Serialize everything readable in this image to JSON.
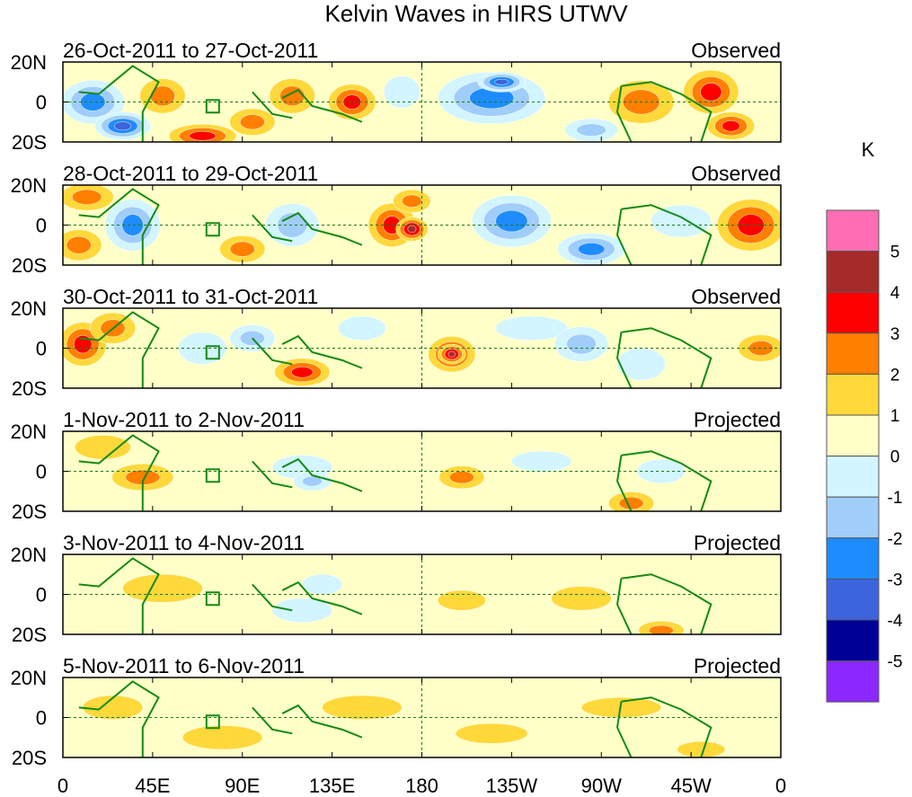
{
  "chart_data": {
    "type": "heatmap",
    "title": "Kelvin Waves in HIRS UTWV",
    "units": "K",
    "x_tick_labels": [
      "0",
      "45E",
      "90E",
      "135E",
      "180",
      "135W",
      "90W",
      "45W",
      "0"
    ],
    "x_range": [
      0,
      360
    ],
    "y_tick_labels": [
      "20N",
      "0",
      "20S"
    ],
    "y_range": [
      -20,
      20
    ],
    "colorbar": {
      "labels": [
        "5",
        "4",
        "3",
        "2",
        "1",
        "0",
        "-1",
        "-2",
        "-3",
        "-4",
        "-5"
      ],
      "colors": [
        "#ff6eb4",
        "#a52a2a",
        "#ff0000",
        "#ff7f00",
        "#ffd83a",
        "#ffffc8",
        "#d2f5ff",
        "#a0cdfa",
        "#1e8cff",
        "#3c64dc",
        "#000096",
        "#8c28ff"
      ]
    },
    "panels": [
      {
        "date_range": "26-Oct-2011 to 27-Oct-2011",
        "kind": "Observed",
        "anomalies": [
          {
            "lon": 15,
            "lat": 0,
            "rx": 14,
            "ry": 10,
            "level": -3
          },
          {
            "lon": 30,
            "lat": -12,
            "rx": 12,
            "ry": 6,
            "level": -4
          },
          {
            "lon": 50,
            "lat": 3,
            "rx": 10,
            "ry": 8,
            "level": 2
          },
          {
            "lon": 70,
            "lat": -17,
            "rx": 15,
            "ry": 5,
            "level": 3
          },
          {
            "lon": 95,
            "lat": -10,
            "rx": 10,
            "ry": 6,
            "level": 2
          },
          {
            "lon": 115,
            "lat": 3,
            "rx": 10,
            "ry": 8,
            "level": 2
          },
          {
            "lon": 145,
            "lat": 0,
            "rx": 10,
            "ry": 8,
            "level": 3
          },
          {
            "lon": 170,
            "lat": 5,
            "rx": 9,
            "ry": 8,
            "level": -1
          },
          {
            "lon": 215,
            "lat": 2,
            "rx": 25,
            "ry": 12,
            "level": -3
          },
          {
            "lon": 220,
            "lat": 10,
            "rx": 10,
            "ry": 4,
            "level": -4
          },
          {
            "lon": 290,
            "lat": 0,
            "rx": 15,
            "ry": 10,
            "level": 2
          },
          {
            "lon": 265,
            "lat": -14,
            "rx": 12,
            "ry": 5,
            "level": -2
          },
          {
            "lon": 325,
            "lat": 5,
            "rx": 12,
            "ry": 10,
            "level": 3
          },
          {
            "lon": 335,
            "lat": -12,
            "rx": 10,
            "ry": 6,
            "level": 3
          }
        ]
      },
      {
        "date_range": "28-Oct-2011 to 29-Oct-2011",
        "kind": "Observed",
        "anomalies": [
          {
            "lon": 12,
            "lat": 14,
            "rx": 12,
            "ry": 6,
            "level": 2
          },
          {
            "lon": 8,
            "lat": -10,
            "rx": 10,
            "ry": 7,
            "level": 2
          },
          {
            "lon": 35,
            "lat": 0,
            "rx": 12,
            "ry": 12,
            "level": -3
          },
          {
            "lon": 90,
            "lat": -12,
            "rx": 10,
            "ry": 6,
            "level": 2
          },
          {
            "lon": 115,
            "lat": 0,
            "rx": 12,
            "ry": 10,
            "level": -2
          },
          {
            "lon": 165,
            "lat": 0,
            "rx": 10,
            "ry": 10,
            "level": 3
          },
          {
            "lon": 175,
            "lat": -2,
            "rx": 6,
            "ry": 5,
            "level": 4
          },
          {
            "lon": 175,
            "lat": 12,
            "rx": 8,
            "ry": 5,
            "level": 2
          },
          {
            "lon": 225,
            "lat": 2,
            "rx": 18,
            "ry": 12,
            "level": -3
          },
          {
            "lon": 265,
            "lat": -12,
            "rx": 15,
            "ry": 7,
            "level": -3
          },
          {
            "lon": 310,
            "lat": 2,
            "rx": 15,
            "ry": 8,
            "level": -1
          },
          {
            "lon": 345,
            "lat": 0,
            "rx": 15,
            "ry": 12,
            "level": 3
          }
        ]
      },
      {
        "date_range": "30-Oct-2011 to 31-Oct-2011",
        "kind": "Observed",
        "anomalies": [
          {
            "lon": 10,
            "lat": 2,
            "rx": 10,
            "ry": 10,
            "level": 3
          },
          {
            "lon": 25,
            "lat": 10,
            "rx": 10,
            "ry": 7,
            "level": 2
          },
          {
            "lon": 70,
            "lat": 0,
            "rx": 12,
            "ry": 8,
            "level": -1
          },
          {
            "lon": 95,
            "lat": 5,
            "rx": 10,
            "ry": 6,
            "level": -2
          },
          {
            "lon": 120,
            "lat": -12,
            "rx": 12,
            "ry": 6,
            "level": 3
          },
          {
            "lon": 150,
            "lat": 10,
            "rx": 12,
            "ry": 6,
            "level": -1
          },
          {
            "lon": 195,
            "lat": -3,
            "rx": 10,
            "ry": 8,
            "level": 3
          },
          {
            "lon": 195,
            "lat": -3,
            "rx": 5,
            "ry": 4,
            "level": 4
          },
          {
            "lon": 235,
            "lat": 10,
            "rx": 18,
            "ry": 6,
            "level": -1
          },
          {
            "lon": 260,
            "lat": 2,
            "rx": 12,
            "ry": 8,
            "level": -2
          },
          {
            "lon": 290,
            "lat": -8,
            "rx": 12,
            "ry": 8,
            "level": -1
          },
          {
            "lon": 350,
            "lat": 0,
            "rx": 10,
            "ry": 6,
            "level": 2
          }
        ]
      },
      {
        "date_range": "1-Nov-2011 to 2-Nov-2011",
        "kind": "Projected",
        "anomalies": [
          {
            "lon": 20,
            "lat": 12,
            "rx": 14,
            "ry": 6,
            "level": 1
          },
          {
            "lon": 40,
            "lat": -3,
            "rx": 14,
            "ry": 6,
            "level": 2
          },
          {
            "lon": 120,
            "lat": 2,
            "rx": 15,
            "ry": 6,
            "level": -1
          },
          {
            "lon": 125,
            "lat": -5,
            "rx": 8,
            "ry": 4,
            "level": -2
          },
          {
            "lon": 200,
            "lat": -3,
            "rx": 10,
            "ry": 5,
            "level": 2
          },
          {
            "lon": 240,
            "lat": 5,
            "rx": 15,
            "ry": 5,
            "level": -1
          },
          {
            "lon": 285,
            "lat": -16,
            "rx": 10,
            "ry": 5,
            "level": 2
          },
          {
            "lon": 300,
            "lat": 0,
            "rx": 12,
            "ry": 6,
            "level": -1
          }
        ]
      },
      {
        "date_range": "3-Nov-2011 to 4-Nov-2011",
        "kind": "Projected",
        "anomalies": [
          {
            "lon": 50,
            "lat": 3,
            "rx": 20,
            "ry": 7,
            "level": 1
          },
          {
            "lon": 120,
            "lat": -8,
            "rx": 15,
            "ry": 6,
            "level": -1
          },
          {
            "lon": 130,
            "lat": 5,
            "rx": 10,
            "ry": 5,
            "level": -1
          },
          {
            "lon": 200,
            "lat": -3,
            "rx": 12,
            "ry": 5,
            "level": 1
          },
          {
            "lon": 260,
            "lat": -2,
            "rx": 15,
            "ry": 6,
            "level": 1
          },
          {
            "lon": 300,
            "lat": -18,
            "rx": 10,
            "ry": 4,
            "level": 2
          }
        ]
      },
      {
        "date_range": "5-Nov-2011 to 6-Nov-2011",
        "kind": "Projected",
        "anomalies": [
          {
            "lon": 25,
            "lat": 5,
            "rx": 15,
            "ry": 6,
            "level": 1
          },
          {
            "lon": 80,
            "lat": -10,
            "rx": 20,
            "ry": 6,
            "level": 1
          },
          {
            "lon": 150,
            "lat": 5,
            "rx": 20,
            "ry": 6,
            "level": 1
          },
          {
            "lon": 215,
            "lat": -8,
            "rx": 18,
            "ry": 5,
            "level": 1
          },
          {
            "lon": 280,
            "lat": 5,
            "rx": 20,
            "ry": 5,
            "level": 1
          },
          {
            "lon": 320,
            "lat": -16,
            "rx": 12,
            "ry": 4,
            "level": 1
          }
        ]
      }
    ]
  }
}
